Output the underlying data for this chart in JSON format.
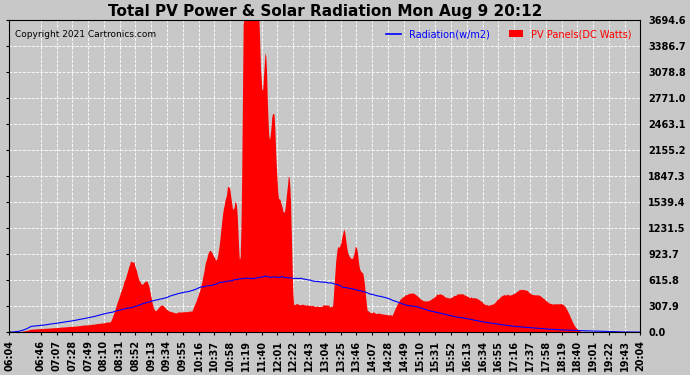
{
  "title": "Total PV Power & Solar Radiation Mon Aug 9 20:12",
  "copyright": "Copyright 2021 Cartronics.com",
  "legend_radiation": "Radiation(w/m2)",
  "legend_pv": "PV Panels(DC Watts)",
  "legend_color_radiation": "#0000ff",
  "legend_color_pv": "#ff0000",
  "ymin": 0.0,
  "ymax": 3694.6,
  "yticks": [
    0.0,
    307.9,
    615.8,
    923.7,
    1231.5,
    1539.4,
    1847.3,
    2155.2,
    2463.1,
    2771.0,
    3078.8,
    3386.7,
    3694.6
  ],
  "background_color": "#c8c8c8",
  "plot_bg_color": "#c8c8c8",
  "grid_color": "#ffffff",
  "fill_color": "#ff0000",
  "line_color": "#0000ff",
  "title_fontsize": 11,
  "tick_fontsize": 7,
  "time_labels": [
    "06:04",
    "06:46",
    "07:07",
    "07:28",
    "07:49",
    "08:10",
    "08:31",
    "08:52",
    "09:13",
    "09:34",
    "09:55",
    "10:16",
    "10:37",
    "10:58",
    "11:19",
    "11:40",
    "12:01",
    "12:22",
    "12:43",
    "13:04",
    "13:25",
    "13:46",
    "14:07",
    "14:28",
    "14:49",
    "15:10",
    "15:31",
    "15:52",
    "16:13",
    "16:34",
    "16:55",
    "17:16",
    "17:37",
    "17:58",
    "18:19",
    "18:40",
    "19:01",
    "19:22",
    "19:43",
    "20:04"
  ]
}
